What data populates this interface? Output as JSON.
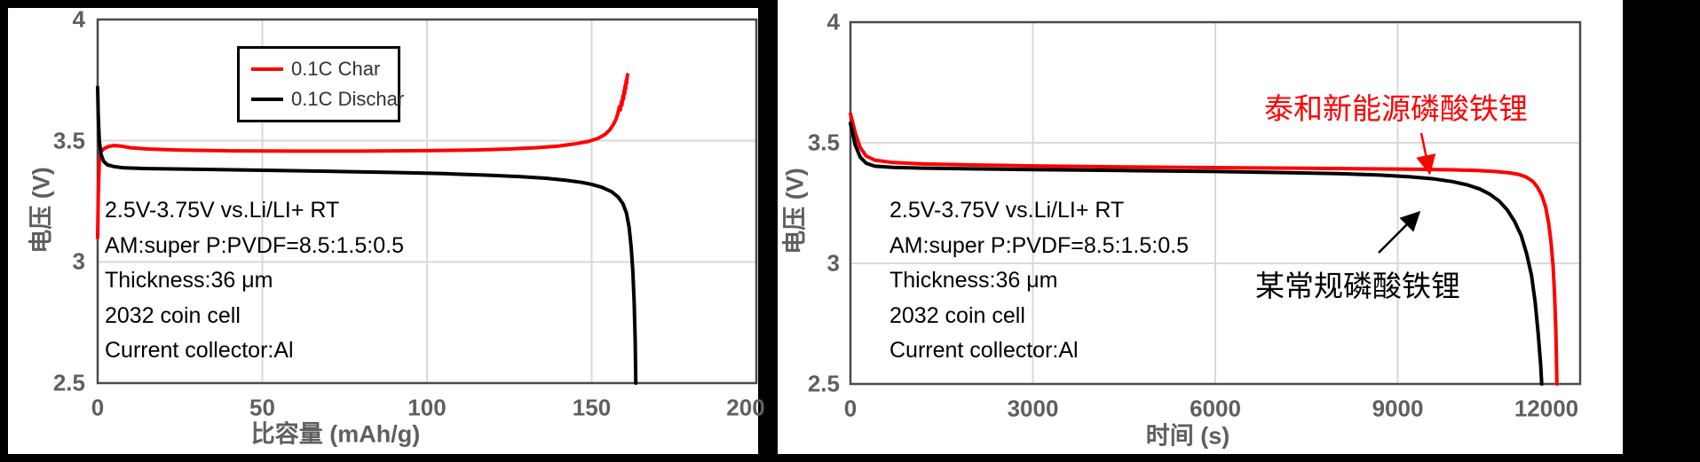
{
  "colors": {
    "charge": "#fe0000",
    "discharge": "#000000",
    "axis_text": "#5f5f5f",
    "grid": "#d9d9d9",
    "frame": "#000000",
    "plot_border": "#4a4a4a"
  },
  "chart_data": [
    {
      "type": "line",
      "title": "",
      "xlabel": "比容量 (mAh/g)",
      "ylabel": "电压 (V)",
      "xlim": [
        0,
        200
      ],
      "ylim": [
        2.5,
        4
      ],
      "xticks": [
        0,
        50,
        100,
        150,
        200
      ],
      "yticks": [
        2.5,
        3,
        3.5,
        4
      ],
      "grid": true,
      "legend_position": "top-center-box",
      "series": [
        {
          "name": "0.1C Char",
          "color": "#fe0000",
          "points": [
            [
              0,
              3.1
            ],
            [
              0.2,
              3.28
            ],
            [
              0.5,
              3.42
            ],
            [
              1,
              3.455
            ],
            [
              2,
              3.468
            ],
            [
              3.5,
              3.477
            ],
            [
              5,
              3.48
            ],
            [
              7,
              3.478
            ],
            [
              10,
              3.471
            ],
            [
              15,
              3.466
            ],
            [
              25,
              3.461
            ],
            [
              40,
              3.458
            ],
            [
              60,
              3.457
            ],
            [
              80,
              3.457
            ],
            [
              100,
              3.459
            ],
            [
              115,
              3.462
            ],
            [
              125,
              3.466
            ],
            [
              133,
              3.471
            ],
            [
              140,
              3.478
            ],
            [
              145,
              3.487
            ],
            [
              149,
              3.497
            ],
            [
              152,
              3.51
            ],
            [
              154,
              3.525
            ],
            [
              155.5,
              3.545
            ],
            [
              156.6,
              3.567
            ],
            [
              157.4,
              3.59
            ],
            [
              158,
              3.615
            ],
            [
              158.4,
              3.64
            ],
            [
              158.7,
              3.627
            ],
            [
              159,
              3.66
            ],
            [
              159.2,
              3.647
            ],
            [
              159.45,
              3.685
            ],
            [
              159.65,
              3.672
            ],
            [
              159.85,
              3.707
            ],
            [
              160,
              3.693
            ],
            [
              160.15,
              3.727
            ],
            [
              160.3,
              3.713
            ],
            [
              160.45,
              3.747
            ],
            [
              160.6,
              3.737
            ],
            [
              160.75,
              3.762
            ],
            [
              160.9,
              3.772
            ]
          ]
        },
        {
          "name": "0.1C Dischar",
          "color": "#000000",
          "points": [
            [
              0,
              3.72
            ],
            [
              0.2,
              3.6
            ],
            [
              0.5,
              3.5
            ],
            [
              1,
              3.445
            ],
            [
              1.8,
              3.415
            ],
            [
              3,
              3.4
            ],
            [
              5,
              3.393
            ],
            [
              8,
              3.388
            ],
            [
              15,
              3.385
            ],
            [
              30,
              3.382
            ],
            [
              50,
              3.378
            ],
            [
              70,
              3.374
            ],
            [
              90,
              3.369
            ],
            [
              105,
              3.364
            ],
            [
              118,
              3.358
            ],
            [
              128,
              3.352
            ],
            [
              136,
              3.345
            ],
            [
              142,
              3.337
            ],
            [
              147,
              3.328
            ],
            [
              150,
              3.32
            ],
            [
              153,
              3.308
            ],
            [
              156,
              3.29
            ],
            [
              158,
              3.268
            ],
            [
              159.5,
              3.24
            ],
            [
              160.6,
              3.2
            ],
            [
              161.4,
              3.14
            ],
            [
              162,
              3.06
            ],
            [
              162.5,
              2.96
            ],
            [
              162.9,
              2.83
            ],
            [
              163.2,
              2.68
            ],
            [
              163.4,
              2.5
            ]
          ]
        }
      ],
      "annotations": [
        "2.5V-3.75V vs.Li/LI+ RT",
        "AM:super P:PVDF=8.5:1.5:0.5",
        "Thickness:36 μm",
        "2032 coin cell",
        "Current collector:Al"
      ]
    },
    {
      "type": "line",
      "title": "",
      "xlabel": "时间 (s)",
      "ylabel": "电压 (V)",
      "xlim": [
        0,
        12000
      ],
      "ylim": [
        2.5,
        4
      ],
      "xticks": [
        0,
        3000,
        6000,
        9000,
        12000
      ],
      "yticks": [
        2.5,
        3,
        3.5,
        4
      ],
      "grid": true,
      "legend_position": "none",
      "series": [
        {
          "name": "泰和新能源磷酸铁锂",
          "color": "#fe0000",
          "points": [
            [
              0,
              3.62
            ],
            [
              80,
              3.54
            ],
            [
              160,
              3.48
            ],
            [
              260,
              3.445
            ],
            [
              400,
              3.428
            ],
            [
              700,
              3.418
            ],
            [
              1200,
              3.412
            ],
            [
              2000,
              3.408
            ],
            [
              3000,
              3.404
            ],
            [
              4500,
              3.4
            ],
            [
              6000,
              3.397
            ],
            [
              7500,
              3.394
            ],
            [
              8500,
              3.392
            ],
            [
              9300,
              3.39
            ],
            [
              9900,
              3.388
            ],
            [
              10300,
              3.385
            ],
            [
              10600,
              3.381
            ],
            [
              10850,
              3.375
            ],
            [
              11000,
              3.368
            ],
            [
              11120,
              3.357
            ],
            [
              11220,
              3.34
            ],
            [
              11300,
              3.315
            ],
            [
              11370,
              3.282
            ],
            [
              11430,
              3.235
            ],
            [
              11480,
              3.17
            ],
            [
              11520,
              3.09
            ],
            [
              11555,
              2.99
            ],
            [
              11580,
              2.87
            ],
            [
              11600,
              2.72
            ],
            [
              11612,
              2.58
            ],
            [
              11618,
              2.5
            ]
          ]
        },
        {
          "name": "某常规磷酸铁锂",
          "color": "#000000",
          "points": [
            [
              0,
              3.58
            ],
            [
              80,
              3.49
            ],
            [
              160,
              3.44
            ],
            [
              260,
              3.415
            ],
            [
              400,
              3.403
            ],
            [
              700,
              3.398
            ],
            [
              1200,
              3.395
            ],
            [
              2000,
              3.392
            ],
            [
              3000,
              3.389
            ],
            [
              4500,
              3.385
            ],
            [
              6000,
              3.381
            ],
            [
              7000,
              3.377
            ],
            [
              8000,
              3.372
            ],
            [
              8700,
              3.366
            ],
            [
              9200,
              3.359
            ],
            [
              9600,
              3.35
            ],
            [
              9900,
              3.339
            ],
            [
              10150,
              3.325
            ],
            [
              10350,
              3.308
            ],
            [
              10520,
              3.286
            ],
            [
              10670,
              3.258
            ],
            [
              10800,
              3.222
            ],
            [
              10920,
              3.175
            ],
            [
              11030,
              3.115
            ],
            [
              11120,
              3.04
            ],
            [
              11200,
              2.95
            ],
            [
              11260,
              2.84
            ],
            [
              11310,
              2.71
            ],
            [
              11350,
              2.58
            ],
            [
              11368,
              2.5
            ]
          ]
        }
      ],
      "annotations": [
        "2.5V-3.75V vs.Li/LI+ RT",
        "AM:super P:PVDF=8.5:1.5:0.5",
        "Thickness:36 μm",
        "2032 coin cell",
        "Current collector:Al"
      ],
      "callouts": [
        {
          "text": "泰和新能源磷酸铁锂",
          "color": "#fe0000"
        },
        {
          "text": "某常规磷酸铁锂",
          "color": "#000000"
        }
      ]
    }
  ]
}
